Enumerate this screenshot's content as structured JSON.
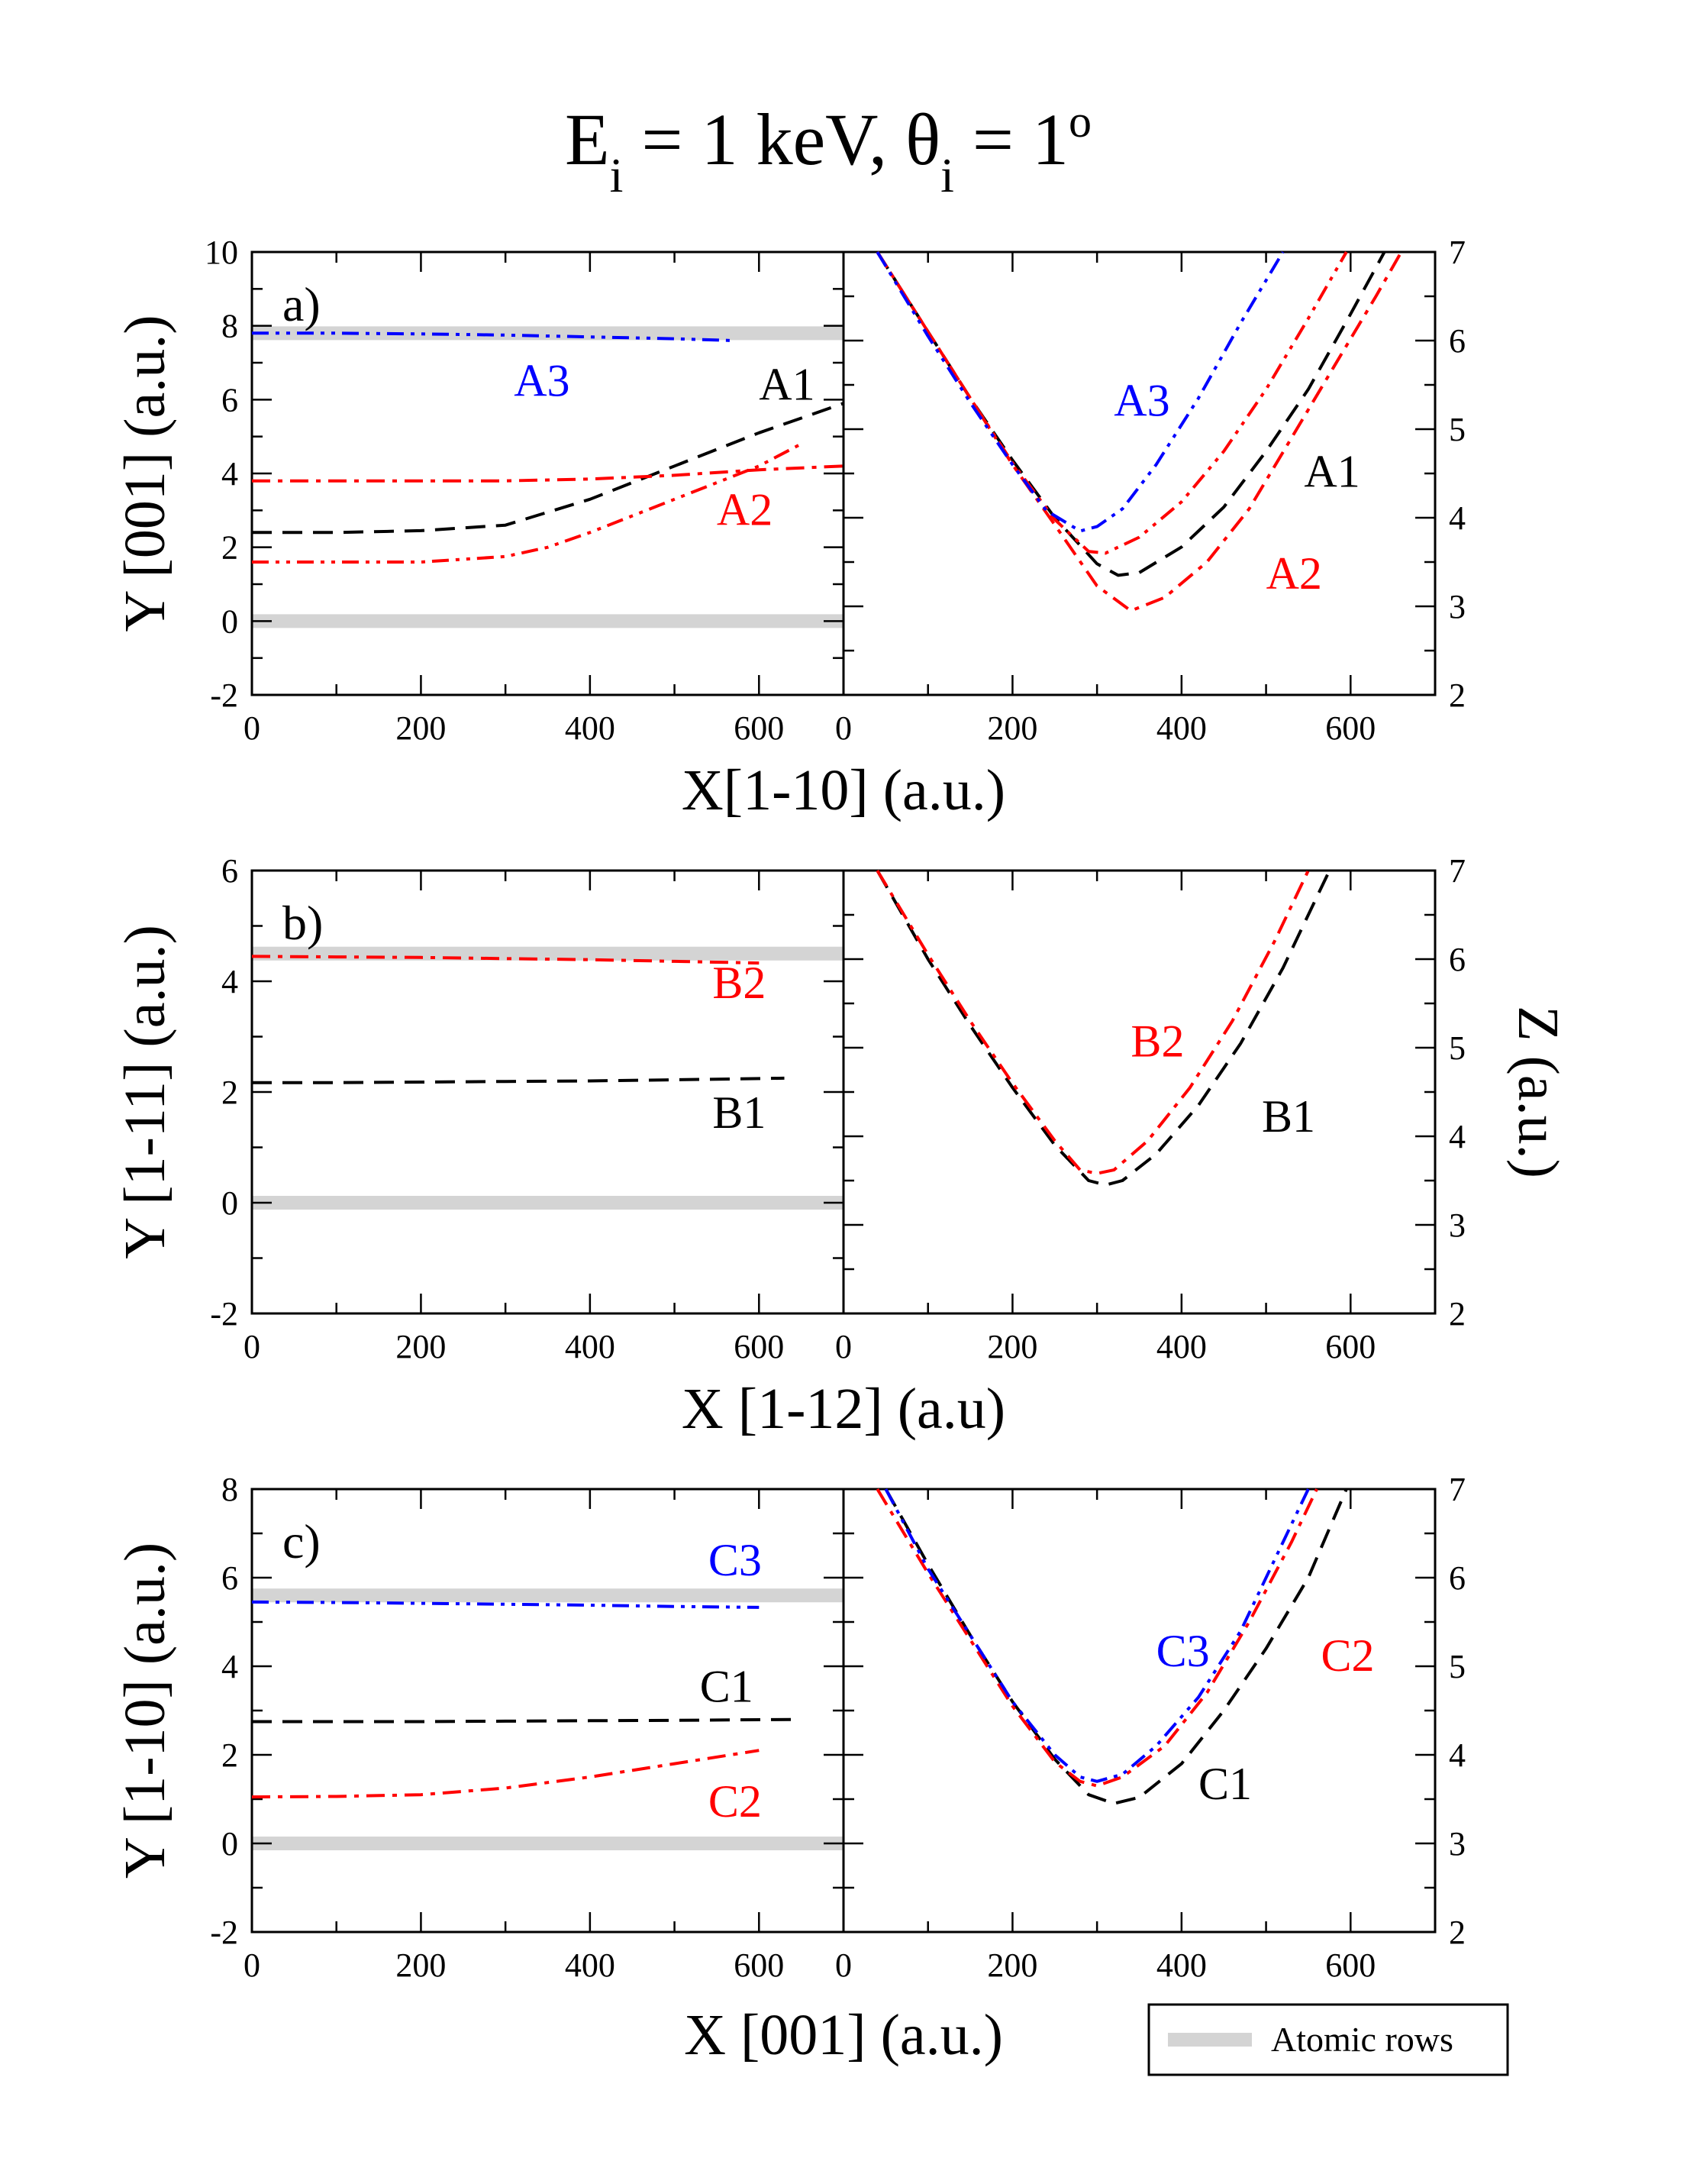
{
  "title": {
    "text": "E",
    "sub1": "i",
    "mid": " = 1 keV, θ",
    "sub2": "i",
    "end": " = 1",
    "deg": "o"
  },
  "colors": {
    "black": "#000000",
    "red": "#ff0000",
    "blue": "#0000ff",
    "rows": "#d4d4d4"
  },
  "legend": {
    "label": "Atomic rows"
  },
  "chart_data": [
    {
      "type": "line",
      "id": "a",
      "panel_label": "a)",
      "xlabel": "X[1-10] (a.u.)",
      "left": {
        "ylabel": "Y [001] (a.u.)",
        "xlim": [
          0,
          700
        ],
        "ylim": [
          -2,
          10
        ],
        "xticks": [
          "0",
          "200",
          "400",
          "600"
        ],
        "yticks": [
          "-2",
          "0",
          "2",
          "4",
          "6",
          "8",
          "10"
        ],
        "atomic_rows": [
          0,
          7.8
        ],
        "series": [
          {
            "name": "A1",
            "color": "#000000",
            "style": "dash",
            "x": [
              0,
              100,
              200,
              300,
              400,
              500,
              600,
              700
            ],
            "y": [
              2.4,
              2.4,
              2.45,
              2.6,
              3.3,
              4.2,
              5.1,
              5.9
            ]
          },
          {
            "name": "A2",
            "color": "#ff0000",
            "style": "dashdot",
            "x": [
              0,
              100,
              200,
              300,
              400,
              500,
              600,
              700
            ],
            "y": [
              3.8,
              3.8,
              3.8,
              3.8,
              3.85,
              3.95,
              4.1,
              4.2
            ]
          },
          {
            "name": "A2",
            "color": "#ff0000",
            "style": "dashdotdot",
            "x": [
              0,
              100,
              200,
              300,
              350,
              400,
              500,
              600,
              650
            ],
            "y": [
              1.6,
              1.6,
              1.6,
              1.75,
              2.0,
              2.4,
              3.3,
              4.2,
              4.8
            ]
          },
          {
            "name": "A3",
            "color": "#0000ff",
            "style": "dashdotdot",
            "x": [
              0,
              100,
              200,
              300,
              400,
              500,
              570
            ],
            "y": [
              7.8,
              7.8,
              7.78,
              7.75,
              7.7,
              7.65,
              7.6
            ]
          }
        ],
        "labels": [
          {
            "text": "A3",
            "color": "#0000ff",
            "x": 310,
            "y": 6.1
          },
          {
            "text": "A1",
            "color": "#000000",
            "x": 600,
            "y": 6.0
          },
          {
            "text": "A2",
            "color": "#ff0000",
            "x": 550,
            "y": 2.6
          }
        ]
      },
      "right": {
        "ylabel": "",
        "xlim": [
          0,
          700
        ],
        "ylim": [
          2,
          7
        ],
        "xticks": [
          "0",
          "200",
          "400",
          "600"
        ],
        "yticks": [
          "2",
          "3",
          "4",
          "5",
          "6",
          "7"
        ],
        "series": [
          {
            "name": "A1",
            "color": "#000000",
            "style": "dash",
            "x": [
              40,
              100,
              150,
              200,
              250,
              300,
              325,
              350,
              400,
              450,
              500,
              550,
              600,
              640
            ],
            "y": [
              7.0,
              6.1,
              5.35,
              4.65,
              4.0,
              3.48,
              3.35,
              3.38,
              3.67,
              4.12,
              4.75,
              5.45,
              6.3,
              7.0
            ]
          },
          {
            "name": "A2",
            "color": "#ff0000",
            "style": "dashdot",
            "x": [
              40,
              100,
              150,
              200,
              250,
              300,
              340,
              380,
              430,
              480,
              530,
              580,
              630,
              660
            ],
            "y": [
              7.0,
              6.1,
              5.35,
              4.6,
              3.92,
              3.23,
              2.95,
              3.1,
              3.5,
              4.1,
              4.9,
              5.7,
              6.5,
              7.0
            ]
          },
          {
            "name": "A2",
            "color": "#ff0000",
            "style": "dashdotdot",
            "x": [
              40,
              100,
              150,
              200,
              250,
              290,
              310,
              350,
              400,
              450,
              500,
              550,
              595
            ],
            "y": [
              7.0,
              6.1,
              5.35,
              4.62,
              3.98,
              3.62,
              3.6,
              3.78,
              4.18,
              4.75,
              5.45,
              6.25,
              7.0
            ]
          },
          {
            "name": "A3",
            "color": "#0000ff",
            "style": "dashdotdot",
            "x": [
              40,
              100,
              150,
              200,
              240,
              280,
              300,
              330,
              370,
              420,
              470,
              520
            ],
            "y": [
              7.0,
              6.05,
              5.3,
              4.6,
              4.08,
              3.85,
              3.9,
              4.1,
              4.6,
              5.35,
              6.2,
              7.0
            ]
          }
        ],
        "labels": [
          {
            "text": "A3",
            "color": "#0000ff",
            "x": 320,
            "y": 5.15
          },
          {
            "text": "A1",
            "color": "#000000",
            "x": 545,
            "y": 4.35
          },
          {
            "text": "A2",
            "color": "#ff0000",
            "x": 500,
            "y": 3.2
          }
        ]
      }
    },
    {
      "type": "line",
      "id": "b",
      "panel_label": "b)",
      "xlabel": "X [1-12] (a.u)",
      "left": {
        "ylabel": "Y [1-11] (a.u.)",
        "xlim": [
          0,
          700
        ],
        "ylim": [
          -2,
          6
        ],
        "xticks": [
          "0",
          "200",
          "400",
          "600"
        ],
        "yticks": [
          "-2",
          "0",
          "2",
          "4",
          "6"
        ],
        "atomic_rows": [
          0,
          4.5
        ],
        "series": [
          {
            "name": "B1",
            "color": "#000000",
            "style": "dash",
            "x": [
              0,
              100,
              200,
              300,
              400,
              500,
              630
            ],
            "y": [
              2.17,
              2.17,
              2.18,
              2.19,
              2.2,
              2.22,
              2.25
            ]
          },
          {
            "name": "B2",
            "color": "#ff0000",
            "style": "dashdot",
            "x": [
              0,
              100,
              200,
              300,
              400,
              500,
              600
            ],
            "y": [
              4.45,
              4.44,
              4.43,
              4.41,
              4.39,
              4.36,
              4.33
            ]
          }
        ],
        "labels": [
          {
            "text": "B2",
            "color": "#ff0000",
            "x": 545,
            "y": 3.7
          },
          {
            "text": "B1",
            "color": "#000000",
            "x": 545,
            "y": 1.35
          }
        ]
      },
      "right": {
        "ylabel": "Z (a.u.)",
        "xlim": [
          0,
          700
        ],
        "ylim": [
          2,
          7
        ],
        "xticks": [
          "0",
          "200",
          "400",
          "600"
        ],
        "yticks": [
          "2",
          "3",
          "4",
          "5",
          "6",
          "7"
        ],
        "series": [
          {
            "name": "B1",
            "color": "#000000",
            "style": "dash",
            "x": [
              40,
              100,
              150,
              200,
              250,
              290,
              310,
              330,
              370,
              420,
              470,
              520,
              575
            ],
            "y": [
              7.0,
              6.0,
              5.25,
              4.55,
              3.9,
              3.5,
              3.45,
              3.5,
              3.8,
              4.35,
              5.05,
              5.9,
              7.0
            ]
          },
          {
            "name": "B2",
            "color": "#ff0000",
            "style": "dashdot",
            "x": [
              40,
              100,
              150,
              200,
              250,
              280,
              300,
              320,
              360,
              410,
              460,
              510,
              550
            ],
            "y": [
              7.0,
              6.05,
              5.3,
              4.6,
              3.95,
              3.62,
              3.58,
              3.62,
              3.95,
              4.55,
              5.3,
              6.2,
              7.0
            ]
          }
        ],
        "labels": [
          {
            "text": "B2",
            "color": "#ff0000",
            "x": 340,
            "y": 4.9
          },
          {
            "text": "B1",
            "color": "#000000",
            "x": 495,
            "y": 4.05
          }
        ]
      }
    },
    {
      "type": "line",
      "id": "c",
      "panel_label": "c)",
      "xlabel": "X [001] (a.u.)",
      "left": {
        "ylabel": "Y [1-10] (a.u.)",
        "xlim": [
          0,
          700
        ],
        "ylim": [
          -2,
          8
        ],
        "xticks": [
          "0",
          "200",
          "400",
          "600"
        ],
        "yticks": [
          "-2",
          "0",
          "2",
          "4",
          "6",
          "8"
        ],
        "atomic_rows": [
          0,
          5.6
        ],
        "series": [
          {
            "name": "C1",
            "color": "#000000",
            "style": "dash",
            "x": [
              0,
              100,
              200,
              300,
              400,
              500,
              650
            ],
            "y": [
              2.75,
              2.75,
              2.75,
              2.76,
              2.77,
              2.78,
              2.8
            ]
          },
          {
            "name": "C2",
            "color": "#ff0000",
            "style": "dashdot",
            "x": [
              0,
              100,
              200,
              300,
              400,
              500,
              600
            ],
            "y": [
              1.05,
              1.06,
              1.1,
              1.25,
              1.5,
              1.8,
              2.1
            ]
          },
          {
            "name": "C3",
            "color": "#0000ff",
            "style": "dashdotdot",
            "x": [
              0,
              100,
              200,
              300,
              400,
              500,
              600
            ],
            "y": [
              5.45,
              5.44,
              5.42,
              5.4,
              5.38,
              5.35,
              5.33
            ]
          }
        ],
        "labels": [
          {
            "text": "C3",
            "color": "#0000ff",
            "x": 540,
            "y": 6.05
          },
          {
            "text": "C1",
            "color": "#000000",
            "x": 530,
            "y": 3.2
          },
          {
            "text": "C2",
            "color": "#ff0000",
            "x": 540,
            "y": 0.6
          }
        ]
      },
      "right": {
        "ylabel": "",
        "xlim": [
          0,
          700
        ],
        "ylim": [
          2,
          7
        ],
        "xticks": [
          "0",
          "200",
          "400",
          "600"
        ],
        "yticks": [
          "2",
          "3",
          "4",
          "5",
          "6",
          "7"
        ],
        "series": [
          {
            "name": "C1",
            "color": "#000000",
            "style": "dash",
            "x": [
              50,
              100,
              150,
              200,
              250,
              290,
              320,
              350,
              400,
              450,
              500,
              550,
              595
            ],
            "y": [
              7.0,
              6.15,
              5.35,
              4.6,
              3.95,
              3.55,
              3.45,
              3.52,
              3.9,
              4.5,
              5.2,
              6.0,
              7.0
            ]
          },
          {
            "name": "C2",
            "color": "#ff0000",
            "style": "dashdot",
            "x": [
              40,
              100,
              150,
              200,
              250,
              280,
              300,
              330,
              380,
              430,
              480,
              530,
              560
            ],
            "y": [
              7.0,
              6.05,
              5.3,
              4.55,
              3.92,
              3.7,
              3.65,
              3.75,
              4.1,
              4.7,
              5.5,
              6.4,
              7.0
            ]
          },
          {
            "name": "C3",
            "color": "#0000ff",
            "style": "dashdotdot",
            "x": [
              50,
              100,
              150,
              200,
              250,
              280,
              300,
              330,
              370,
              420,
              470,
              520,
              550
            ],
            "y": [
              7.0,
              6.1,
              5.35,
              4.6,
              4.0,
              3.75,
              3.7,
              3.78,
              4.1,
              4.65,
              5.4,
              6.4,
              7.0
            ]
          }
        ],
        "labels": [
          {
            "text": "C3",
            "color": "#0000ff",
            "x": 370,
            "y": 5.0
          },
          {
            "text": "C2",
            "color": "#ff0000",
            "x": 565,
            "y": 4.95
          },
          {
            "text": "C1",
            "color": "#000000",
            "x": 420,
            "y": 3.5
          }
        ]
      }
    }
  ]
}
